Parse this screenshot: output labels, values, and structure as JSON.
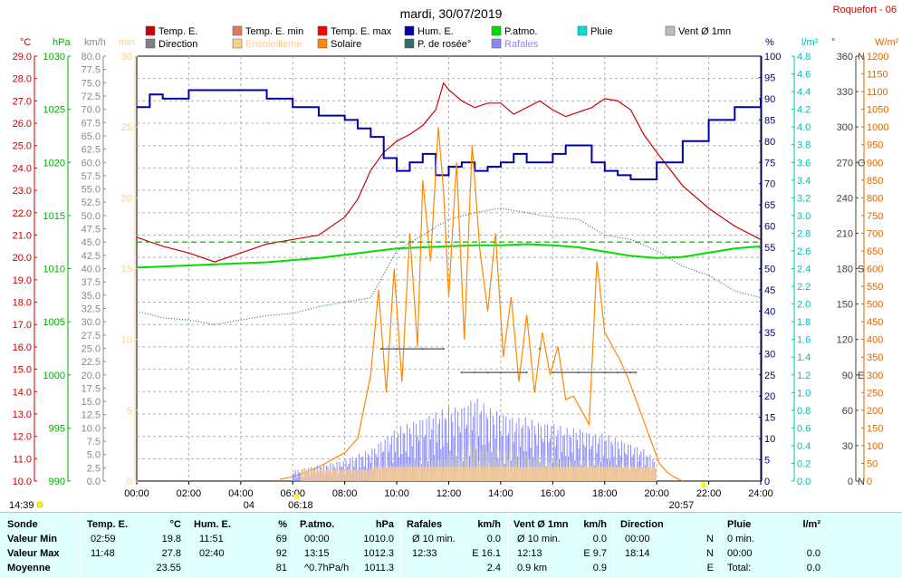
{
  "header": {
    "title": "mardi, 30/07/2019",
    "station": "Roquefort - 06"
  },
  "legend": [
    {
      "label": "Temp. E.",
      "color": "#cc0000"
    },
    {
      "label": "Direction",
      "color": "#808080"
    },
    {
      "label": "Temp. E. min",
      "color": "#e07a5f"
    },
    {
      "label": "Ensoleilleme",
      "color": "#ffcc88"
    },
    {
      "label": "Temp. E. max",
      "color": "#ff0000"
    },
    {
      "label": "Solaire",
      "color": "#ff8800"
    },
    {
      "label": "Hum. E.",
      "color": "#0000aa"
    },
    {
      "label": "P. de rosée°",
      "color": "#2f6f6f"
    },
    {
      "label": "P.atmo.",
      "color": "#00dd00"
    },
    {
      "label": "Rafales",
      "color": "#8888ff"
    },
    {
      "label": "Pluie",
      "color": "#00dddd"
    },
    {
      "label": "Vent Ø 1mn",
      "color": "#bbbbbb"
    }
  ],
  "axes": {
    "temp": {
      "unit": "°C",
      "min": 10,
      "max": 29,
      "step": 1,
      "color": "#cc0000"
    },
    "pressure": {
      "unit": "hPa",
      "min": 990,
      "max": 1030,
      "step": 5,
      "color": "#00aa00"
    },
    "wind": {
      "unit": "km/h",
      "min": 0,
      "max": 80,
      "step": 2.5,
      "color": "#888888"
    },
    "sun_min": {
      "unit": "min",
      "min": 0,
      "max": 30,
      "step": 5,
      "color": "#ffcc88"
    },
    "humidity": {
      "unit": "%",
      "min": 0,
      "max": 100,
      "step": 5,
      "color": "#000080"
    },
    "rain": {
      "unit": "l/m²",
      "min": 0,
      "max": 4.8,
      "step": 0.2,
      "color": "#00bbbb"
    },
    "direction": {
      "unit": "°",
      "ticks": [
        [
          0,
          "0",
          "N"
        ],
        [
          30,
          "30",
          ""
        ],
        [
          60,
          "60",
          ""
        ],
        [
          90,
          "90",
          "E"
        ],
        [
          120,
          "120",
          ""
        ],
        [
          150,
          "150",
          ""
        ],
        [
          180,
          "180",
          "S"
        ],
        [
          210,
          "210",
          ""
        ],
        [
          240,
          "240",
          ""
        ],
        [
          270,
          "270",
          "O"
        ],
        [
          300,
          "300",
          ""
        ],
        [
          330,
          "330",
          ""
        ],
        [
          360,
          "360",
          "N"
        ]
      ],
      "color": "#404040"
    },
    "solar": {
      "unit": "W/m²",
      "min": 0,
      "max": 1200,
      "step": 50,
      "color": "#dd6600"
    },
    "time": {
      "ticks": [
        "00:00",
        "02:00",
        "04:00",
        "06:00",
        "08:00",
        "10:00",
        "12:00",
        "14:00",
        "16:00",
        "18:00",
        "20:00",
        "22:00",
        "24:00"
      ]
    }
  },
  "markers": {
    "left_time": "14:39",
    "sunrise": "06:18",
    "sunset": "20:57",
    "moon": "04"
  },
  "chart_data": {
    "type": "line",
    "x_unit": "hours",
    "x_range": [
      0,
      24
    ],
    "series": [
      {
        "name": "Temp. E.",
        "axis": "temp",
        "color": "#cc0000",
        "x": [
          0,
          1,
          2,
          3,
          4,
          5,
          6,
          7,
          8,
          8.5,
          9,
          9.5,
          10,
          10.5,
          11,
          11.5,
          11.8,
          12,
          12.5,
          13,
          13.5,
          14,
          14.5,
          15,
          15.5,
          16,
          16.5,
          17,
          17.5,
          18,
          18.5,
          19,
          19.5,
          20,
          21,
          22,
          23,
          24
        ],
        "y": [
          20.9,
          20.5,
          20.2,
          19.8,
          20.2,
          20.6,
          20.8,
          21.0,
          21.8,
          22.6,
          23.9,
          24.7,
          25.2,
          25.5,
          25.9,
          26.6,
          27.8,
          27.5,
          27.0,
          26.7,
          26.9,
          26.9,
          26.4,
          26.7,
          27.0,
          26.6,
          26.3,
          26.5,
          26.7,
          27.1,
          27.0,
          26.6,
          25.5,
          24.7,
          23.2,
          22.2,
          21.4,
          20.8
        ]
      },
      {
        "name": "Hum. E.",
        "axis": "humidity",
        "color": "#0000aa",
        "x": [
          0,
          0.5,
          1,
          2,
          3,
          4,
          5,
          6,
          7,
          8,
          8.5,
          9,
          9.5,
          10,
          10.5,
          11,
          11.5,
          12,
          12.5,
          13,
          13.5,
          14,
          14.5,
          15,
          15.5,
          16,
          16.5,
          17,
          17.5,
          18,
          18.5,
          19,
          19.5,
          20,
          21,
          22,
          23,
          24
        ],
        "y": [
          88,
          91,
          90,
          92,
          92,
          92,
          90,
          88,
          86,
          85,
          83,
          81,
          76,
          73,
          75,
          77,
          72,
          74,
          75,
          73,
          74,
          75,
          77,
          75,
          75,
          77,
          79,
          79,
          75,
          73,
          72,
          71,
          71,
          75,
          80,
          85,
          88,
          90
        ]
      },
      {
        "name": "P. de rosée°",
        "axis": "temp",
        "color": "#2f6f6f",
        "x": [
          0,
          1,
          2,
          3,
          4,
          5,
          6,
          7,
          8,
          9,
          10,
          11,
          12,
          13,
          14,
          15,
          16,
          17,
          18,
          19,
          20,
          21,
          22,
          23,
          24
        ],
        "y": [
          17.6,
          17.3,
          17.2,
          17.0,
          17.2,
          17.4,
          17.5,
          17.8,
          18.0,
          18.2,
          20.3,
          21.0,
          21.7,
          22.0,
          22.2,
          22.0,
          21.8,
          21.7,
          21.0,
          20.8,
          20.3,
          19.6,
          19.2,
          18.5,
          18.2
        ]
      },
      {
        "name": "P.atmo.",
        "axis": "pressure",
        "color": "#00dd00",
        "x": [
          0,
          1,
          2,
          3,
          4,
          5,
          6,
          7,
          8,
          9,
          10,
          11,
          12,
          13,
          14,
          15,
          16,
          17,
          18,
          19,
          20,
          21,
          22,
          23,
          24
        ],
        "y": [
          1010.1,
          1010.2,
          1010.3,
          1010.4,
          1010.5,
          1010.6,
          1010.8,
          1011.0,
          1011.3,
          1011.6,
          1011.9,
          1012.0,
          1012.1,
          1012.2,
          1012.2,
          1012.3,
          1012.2,
          1012.0,
          1011.6,
          1011.2,
          1011.0,
          1011.1,
          1011.5,
          1011.9,
          1012.1
        ]
      },
      {
        "name": "Solaire",
        "axis": "solar",
        "color": "#ff8800",
        "x": [
          5.5,
          6,
          6.5,
          7,
          7.5,
          8,
          8.5,
          9,
          9.3,
          9.6,
          9.9,
          10.2,
          10.5,
          10.8,
          11.0,
          11.3,
          11.6,
          11.8,
          12.0,
          12.3,
          12.6,
          12.9,
          13.2,
          13.5,
          13.8,
          14.1,
          14.4,
          14.7,
          15.0,
          15.3,
          15.6,
          15.9,
          16.2,
          16.5,
          16.8,
          17.1,
          17.4,
          17.7,
          18.0,
          18.3,
          18.6,
          18.9,
          19.2,
          19.5,
          19.8,
          20.1,
          20.4,
          20.7,
          21.0
        ],
        "y": [
          5,
          12,
          25,
          40,
          60,
          80,
          120,
          300,
          540,
          250,
          600,
          280,
          700,
          380,
          850,
          620,
          1000,
          820,
          520,
          900,
          400,
          950,
          650,
          480,
          700,
          350,
          520,
          280,
          470,
          250,
          420,
          300,
          380,
          230,
          240,
          200,
          160,
          620,
          420,
          380,
          340,
          290,
          230,
          170,
          110,
          50,
          25,
          10,
          0
        ]
      },
      {
        "name": "Rafales",
        "axis": "wind",
        "color": "#8888ff",
        "x": [
          6,
          7,
          8,
          9,
          9.5,
          10,
          10.5,
          11,
          11.5,
          12,
          12.5,
          13,
          13.5,
          14,
          14.5,
          15,
          15.5,
          16,
          16.5,
          17,
          17.5,
          18,
          18.5,
          19,
          19.5,
          20
        ],
        "y": [
          2,
          3,
          4,
          6,
          8,
          10,
          11,
          12,
          13,
          14,
          14,
          16,
          14,
          13,
          12,
          12,
          11,
          11,
          10,
          10,
          9,
          9,
          8,
          7,
          6,
          4
        ]
      },
      {
        "name": "Vent Ø 1mn",
        "axis": "wind",
        "color": "#bbbbbb",
        "x": [
          9,
          10,
          11,
          12,
          13,
          14,
          15,
          16,
          17,
          18,
          19,
          20
        ],
        "y": [
          2,
          3,
          4,
          5,
          7,
          6,
          5,
          5,
          4,
          4,
          3,
          2
        ]
      },
      {
        "name": "Direction",
        "axis": "direction",
        "color": "#707070",
        "x": [
          9.4,
          10,
          11,
          11.8,
          12.5,
          13,
          13.5,
          14,
          15,
          15.5,
          16,
          17,
          18,
          18.5,
          19,
          19.2
        ],
        "y": [
          112,
          112,
          112,
          112,
          92,
          92,
          92,
          92,
          92,
          112,
          92,
          92,
          92,
          92,
          92,
          92
        ]
      },
      {
        "name": "Ensoleilleme",
        "axis": "sun_min",
        "color": "#ffcc88",
        "x": [
          6.3,
          9,
          10,
          11,
          12,
          13,
          14,
          15,
          16,
          17,
          18,
          19,
          20,
          20.9
        ],
        "y": [
          0,
          0.8,
          1.0,
          1.0,
          1.0,
          1.0,
          1.0,
          1.0,
          1.0,
          1.0,
          1.0,
          1.0,
          1.0,
          0
        ]
      }
    ]
  },
  "summary": {
    "headers": [
      "Sonde",
      "Temp. E.",
      "°C",
      "Hum. E.",
      "%",
      "P.atmo.",
      "hPa",
      "Rafales",
      "km/h",
      "Vent Ø 1mn",
      "km/h",
      "Direction",
      "Pluie",
      "l/m²"
    ],
    "rows": [
      {
        "label": "Valeur Min",
        "t_time": "02:59",
        "t_val": "19.8",
        "h_time": "11:51",
        "h_val": "69",
        "p_time": "00:00",
        "p_val": "1010.0",
        "r_time": "Ø 10 min.",
        "r_val": "0.0",
        "v_time": "Ø 10 min.",
        "v_val": "0.0",
        "d_time": "00:00",
        "d_val": "N",
        "pl_time": "0 min.",
        "pl_val": ""
      },
      {
        "label": "Valeur Max",
        "t_time": "11:48",
        "t_val": "27.8",
        "h_time": "02:40",
        "h_val": "92",
        "p_time": "13:15",
        "p_val": "1012.3",
        "r_time": "12:33",
        "r_val": "E 16.1",
        "v_time": "12:13",
        "v_val": "E  9.7",
        "d_time": "18:14",
        "d_val": "N",
        "pl_time": "00:00",
        "pl_val": "0.0"
      },
      {
        "label": "Moyenne",
        "t_time": "",
        "t_val": "23.55",
        "h_time": "",
        "h_val": "81",
        "p_time": "^0.7hPa/h",
        "p_val": "1011.3",
        "r_time": "",
        "r_val": "2.4",
        "v_time": "0.9 km",
        "v_val": "0.9",
        "d_time": "",
        "d_val": "E",
        "pl_time": "Total:",
        "pl_val": "0.0"
      }
    ]
  }
}
